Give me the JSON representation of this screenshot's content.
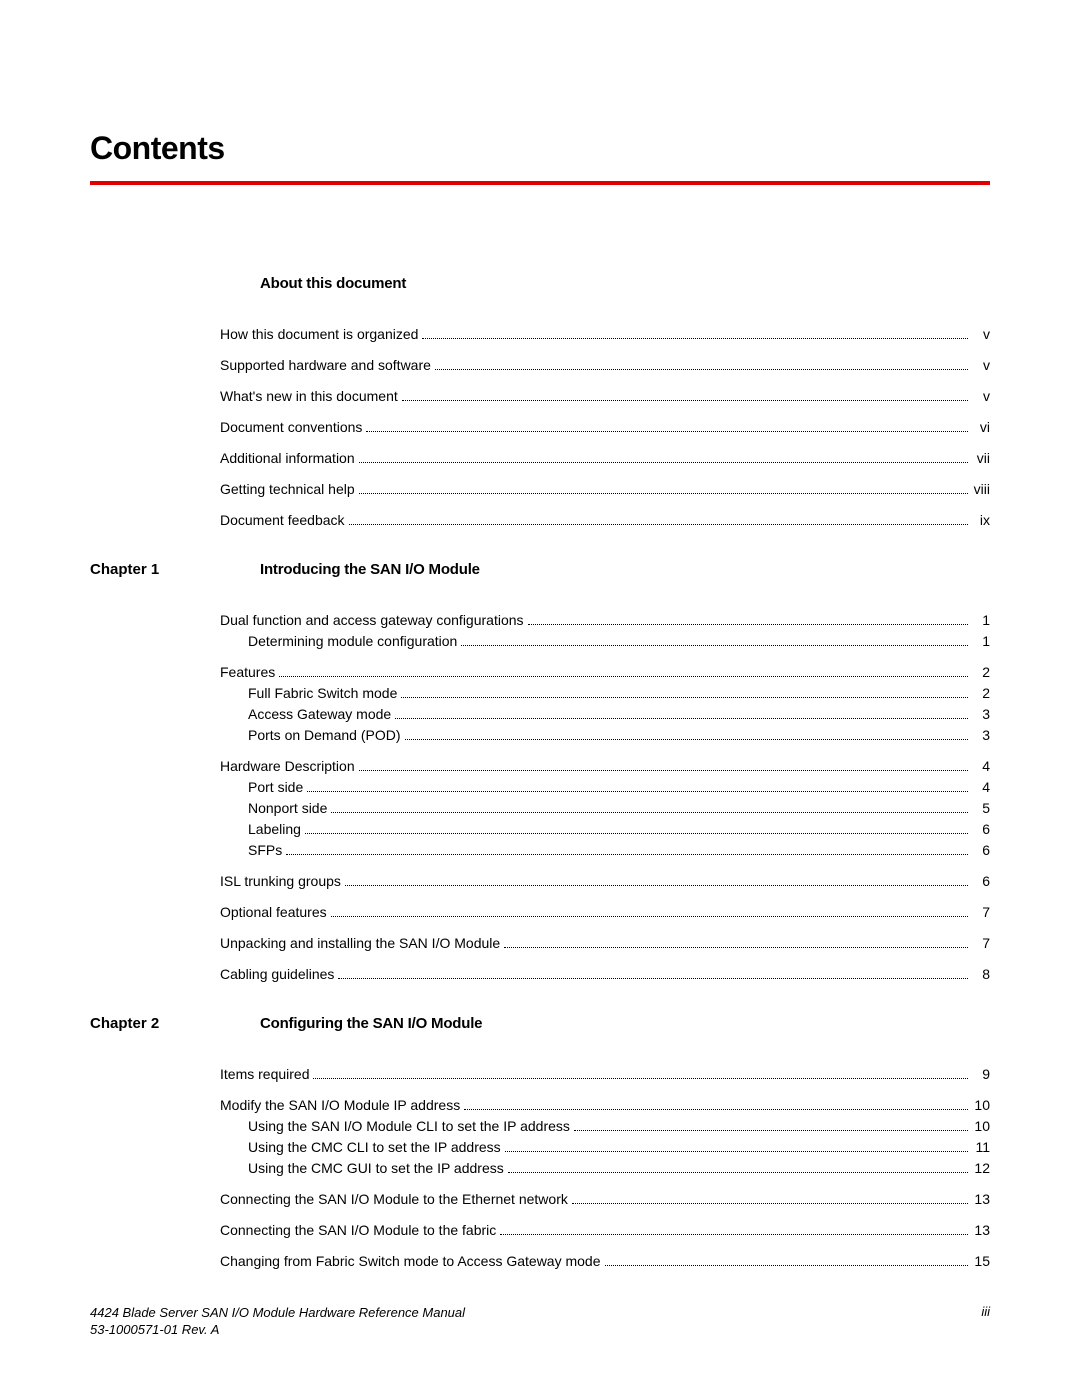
{
  "title": "Contents",
  "rule_color": "#e00000",
  "sections": [
    {
      "chapter_label": "",
      "title": "About this document",
      "groups": [
        {
          "main": {
            "text": "How this document is organized",
            "page": "v"
          },
          "subs": []
        },
        {
          "main": {
            "text": "Supported hardware and software",
            "page": "v"
          },
          "subs": []
        },
        {
          "main": {
            "text": "What's new in this document",
            "page": "v"
          },
          "subs": []
        },
        {
          "main": {
            "text": "Document conventions",
            "page": "vi"
          },
          "subs": []
        },
        {
          "main": {
            "text": "Additional information",
            "page": "vii"
          },
          "subs": []
        },
        {
          "main": {
            "text": "Getting technical help",
            "page": "viii"
          },
          "subs": []
        },
        {
          "main": {
            "text": "Document feedback",
            "page": "ix"
          },
          "subs": []
        }
      ]
    },
    {
      "chapter_label": "Chapter 1",
      "title": "Introducing the SAN I/O Module",
      "groups": [
        {
          "main": {
            "text": "Dual function and access gateway configurations",
            "page": "1"
          },
          "subs": [
            {
              "text": "Determining module configuration",
              "page": "1"
            }
          ]
        },
        {
          "main": {
            "text": "Features",
            "page": "2"
          },
          "subs": [
            {
              "text": "Full Fabric Switch mode",
              "page": "2"
            },
            {
              "text": "Access Gateway mode",
              "page": "3"
            },
            {
              "text": "Ports on Demand (POD)",
              "page": "3"
            }
          ]
        },
        {
          "main": {
            "text": "Hardware Description",
            "page": "4"
          },
          "subs": [
            {
              "text": "Port side",
              "page": "4"
            },
            {
              "text": "Nonport side",
              "page": "5"
            },
            {
              "text": "Labeling",
              "page": "6"
            },
            {
              "text": "SFPs",
              "page": "6"
            }
          ]
        },
        {
          "main": {
            "text": "ISL trunking groups",
            "page": "6"
          },
          "subs": []
        },
        {
          "main": {
            "text": "Optional features",
            "page": "7"
          },
          "subs": []
        },
        {
          "main": {
            "text": "Unpacking and installing the SAN I/O Module",
            "page": "7"
          },
          "subs": []
        },
        {
          "main": {
            "text": "Cabling guidelines",
            "page": "8"
          },
          "subs": []
        }
      ]
    },
    {
      "chapter_label": "Chapter 2",
      "title": "Configuring the SAN I/O Module",
      "groups": [
        {
          "main": {
            "text": "Items required",
            "page": "9"
          },
          "subs": []
        },
        {
          "main": {
            "text": "Modify the SAN I/O Module IP address",
            "page": "10"
          },
          "subs": [
            {
              "text": "Using the SAN I/O Module CLI to set the IP address",
              "page": "10"
            },
            {
              "text": "Using the CMC CLI to set the IP address",
              "page": "11"
            },
            {
              "text": "Using the CMC GUI to set the IP address",
              "page": "12"
            }
          ]
        },
        {
          "main": {
            "text": "Connecting the SAN I/O Module to the Ethernet network",
            "page": "13"
          },
          "subs": []
        },
        {
          "main": {
            "text": "Connecting the SAN I/O Module to the fabric",
            "page": "13"
          },
          "subs": []
        },
        {
          "main": {
            "text": "Changing from Fabric Switch mode to Access Gateway mode",
            "page": "15"
          },
          "subs": []
        }
      ]
    }
  ],
  "footer": {
    "line1": "4424 Blade Server SAN I/O Module Hardware Reference Manual",
    "line2": "53-1000571-01 Rev. A",
    "page_num": "iii"
  }
}
